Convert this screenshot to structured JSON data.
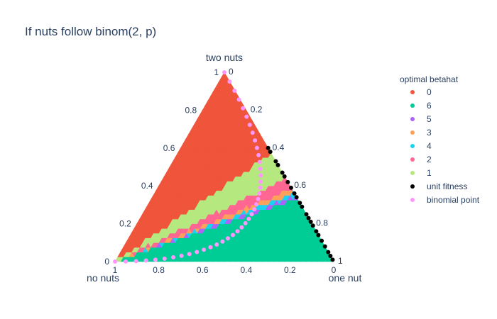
{
  "title": "If nuts follow binom(2, p)",
  "colors": {
    "betahat_0": "#EF553B",
    "betahat_6": "#00CC96",
    "betahat_5": "#AB63FA",
    "betahat_3": "#FFA15A",
    "betahat_4": "#19D3F3",
    "betahat_2": "#FF6692",
    "betahat_1": "#B6E880",
    "unit_fitness": "#000000",
    "binomial_point": "#FF97FF",
    "text": "#2a3f5f"
  },
  "chart_data": {
    "type": "ternary scatter",
    "title": "If nuts follow binom(2, p)",
    "axes": {
      "a": {
        "title": "two nuts",
        "range": [
          0,
          1
        ],
        "ticks": [
          "0",
          "0.2",
          "0.4",
          "0.6",
          "0.8",
          "1"
        ]
      },
      "b": {
        "title": "no nuts",
        "range": [
          0,
          1
        ],
        "ticks": [
          "0",
          "0.2",
          "0.4",
          "0.6",
          "0.8",
          "1"
        ]
      },
      "c": {
        "title": "one nut",
        "range": [
          0,
          1
        ],
        "ticks": [
          "0",
          "0.2",
          "0.4",
          "0.6",
          "0.8",
          "1"
        ]
      }
    },
    "axis_tick_labels": {
      "left": [
        "0",
        "0.2",
        "0.4",
        "0.6",
        "0.8",
        "1"
      ],
      "bottom": [
        "1",
        "0.8",
        "0.6",
        "0.4",
        "0.2",
        "0"
      ],
      "right": [
        "0",
        "0.2",
        "0.4",
        "0.6",
        "0.8",
        "1"
      ]
    },
    "legend": {
      "title": "optimal betahat",
      "position": "right",
      "entries": [
        {
          "label": "0",
          "color": "#EF553B"
        },
        {
          "label": "6",
          "color": "#00CC96"
        },
        {
          "label": "5",
          "color": "#AB63FA"
        },
        {
          "label": "3",
          "color": "#FFA15A"
        },
        {
          "label": "4",
          "color": "#19D3F3"
        },
        {
          "label": "2",
          "color": "#FF6692"
        },
        {
          "label": "1",
          "color": "#B6E880"
        },
        {
          "label": "unit fitness",
          "color": "#000000"
        },
        {
          "label": "binomial point",
          "color": "#FF97FF"
        }
      ]
    },
    "regions_by_two_nuts_over_one_nut_ratio": [
      {
        "betahat": "0",
        "ratio_min": 1.33
      },
      {
        "betahat": "1",
        "ratio_min": 0.78,
        "ratio_max": 1.33
      },
      {
        "betahat": "2",
        "ratio_min": 0.62,
        "ratio_max": 0.78
      },
      {
        "betahat": "3",
        "ratio_min": 0.57,
        "ratio_max": 0.62
      },
      {
        "betahat": "4",
        "ratio_min": 0.53,
        "ratio_max": 0.57
      },
      {
        "betahat": "5",
        "ratio_min": 0.5,
        "ratio_max": 0.53
      },
      {
        "betahat": "6",
        "ratio_max": 0.5
      }
    ],
    "series": [
      {
        "name": "unit fitness",
        "note_points": "[two_nuts, no_nuts, one_nut]",
        "points": [
          [
            0.6,
            0.0,
            0.4
          ],
          [
            0.58,
            0.0,
            0.42
          ],
          [
            0.53,
            0.0,
            0.47
          ],
          [
            0.51,
            0.0,
            0.49
          ],
          [
            0.47,
            0.0,
            0.53
          ],
          [
            0.45,
            0.0,
            0.55
          ],
          [
            0.42,
            0.0,
            0.58
          ],
          [
            0.39,
            0.0,
            0.61
          ],
          [
            0.36,
            0.0,
            0.64
          ],
          [
            0.34,
            0.0,
            0.66
          ],
          [
            0.31,
            0.0,
            0.69
          ],
          [
            0.29,
            0.0,
            0.71
          ],
          [
            0.25,
            0.0,
            0.75
          ],
          [
            0.23,
            0.0,
            0.77
          ],
          [
            0.21,
            0.0,
            0.79
          ],
          [
            0.19,
            0.0,
            0.81
          ],
          [
            0.16,
            0.0,
            0.84
          ],
          [
            0.14,
            0.0,
            0.86
          ],
          [
            0.11,
            0.0,
            0.89
          ],
          [
            0.08,
            0.0,
            0.92
          ],
          [
            0.05,
            0.0,
            0.95
          ],
          [
            0.03,
            0.0,
            0.97
          ],
          [
            0.01,
            0.0,
            0.99
          ]
        ]
      },
      {
        "name": "binomial point",
        "formula": "two_nuts = p^2, one_nut = 2p(1-p), no_nuts = (1-p)^2",
        "p_values": [
          0,
          0.025,
          0.05,
          0.075,
          0.1,
          0.125,
          0.15,
          0.175,
          0.2,
          0.225,
          0.25,
          0.275,
          0.3,
          0.325,
          0.35,
          0.375,
          0.4,
          0.425,
          0.45,
          0.475,
          0.5,
          0.525,
          0.55,
          0.575,
          0.6,
          0.625,
          0.65,
          0.675,
          0.7,
          0.725,
          0.75,
          0.775,
          0.8,
          0.825,
          0.85,
          0.875,
          0.9,
          0.925,
          0.95,
          0.975,
          1
        ]
      }
    ]
  }
}
